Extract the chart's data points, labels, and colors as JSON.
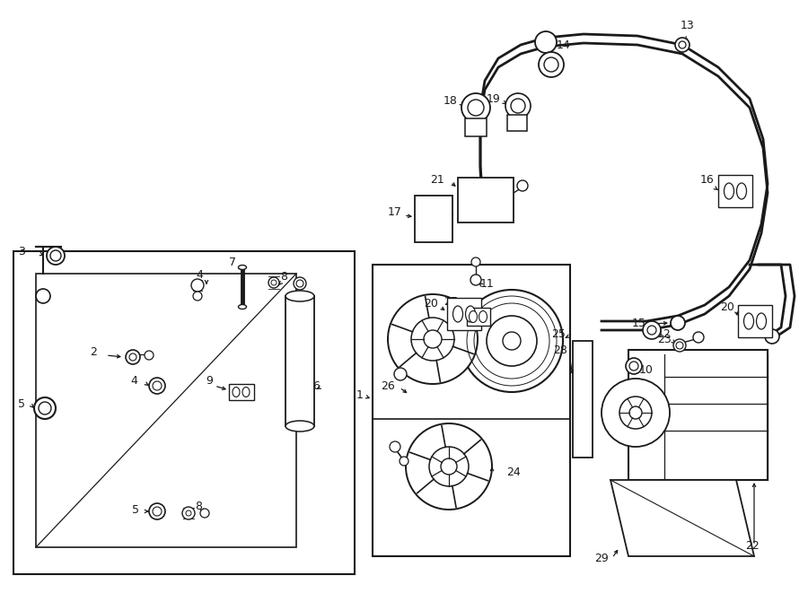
{
  "bg_color": "#ffffff",
  "lc": "#1a1a1a",
  "fig_w": 9.0,
  "fig_h": 6.61,
  "dpi": 100,
  "xlim": [
    0,
    900
  ],
  "ylim": [
    0,
    661
  ]
}
